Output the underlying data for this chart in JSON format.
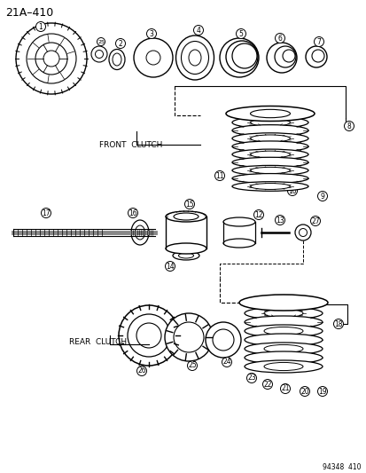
{
  "title": "21A–410",
  "watermark": "94348  410",
  "background_color": "#ffffff",
  "line_color": "#1a1a1a",
  "text_color": "#1a1a1a",
  "front_clutch_label": "FRONT  CLUTCH",
  "rear_clutch_label": "REAR  CLUTCH",
  "figsize": [
    4.14,
    5.33
  ],
  "dpi": 100
}
